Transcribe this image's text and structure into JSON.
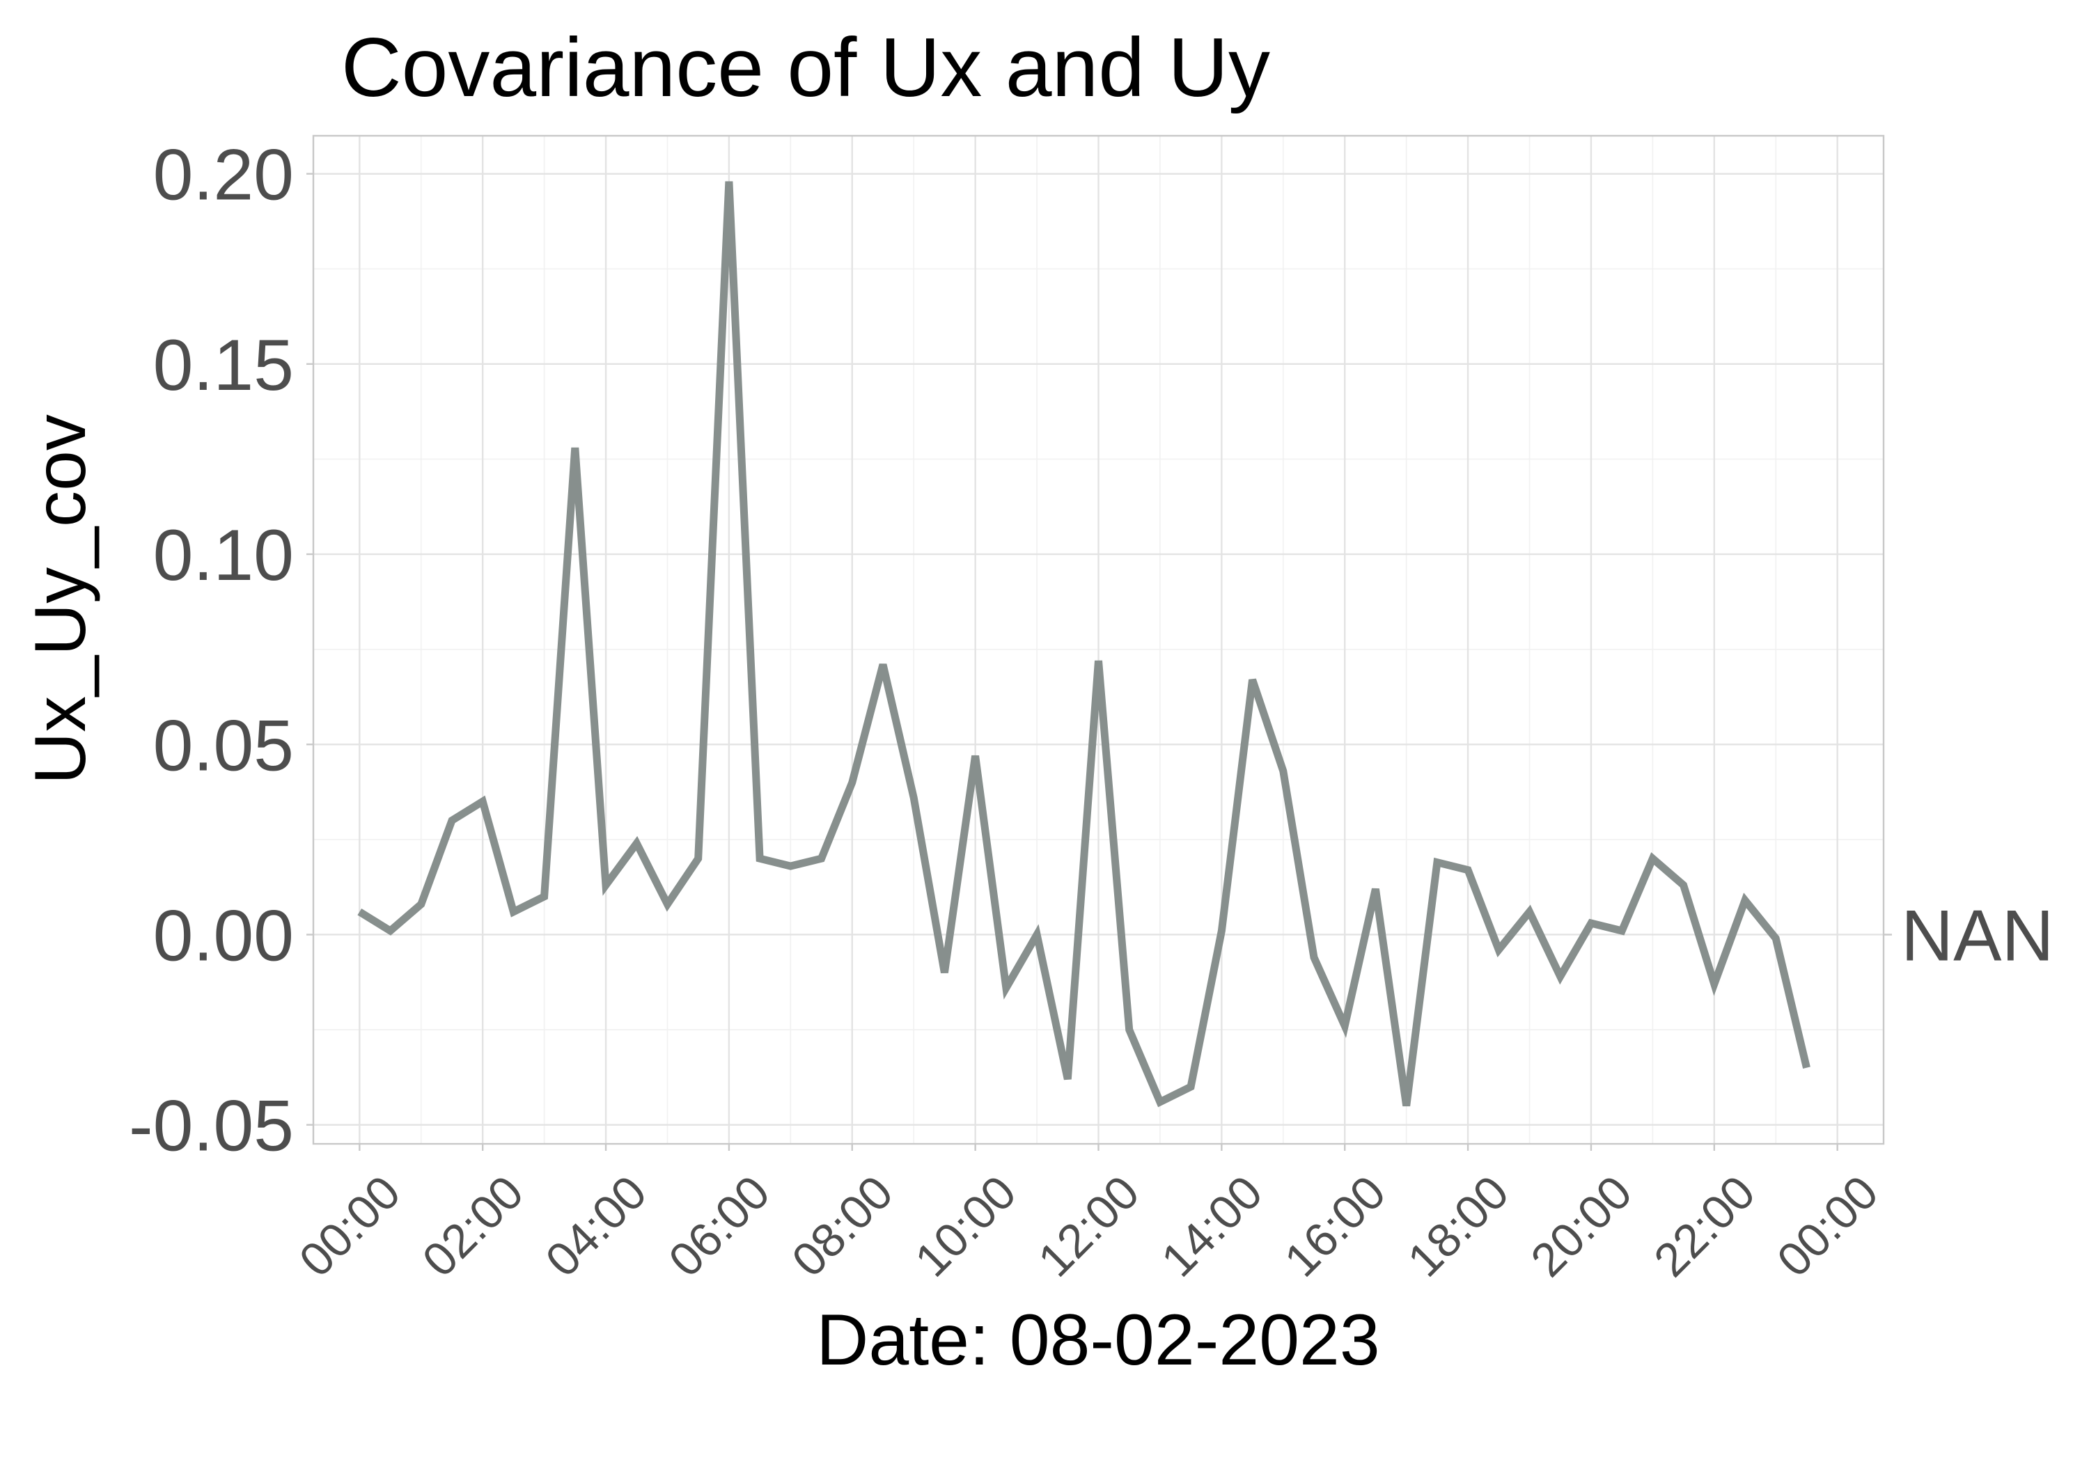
{
  "chart_data": {
    "type": "line",
    "title": "Covariance of Ux and Uy",
    "xlabel": "Date: 08-02-2023",
    "ylabel": "Ux_Uy_cov",
    "ylim": [
      -0.055,
      0.21
    ],
    "xlim_hours": [
      -0.75,
      24.75
    ],
    "y_ticks": [
      -0.05,
      0.0,
      0.05,
      0.1,
      0.15,
      0.2
    ],
    "y_tick_labels": [
      "-0.05",
      "0.00",
      "0.05",
      "0.10",
      "0.15",
      "0.20"
    ],
    "x_ticks_hours": [
      0,
      2,
      4,
      6,
      8,
      10,
      12,
      14,
      16,
      18,
      20,
      22,
      24
    ],
    "x_tick_labels": [
      "00:00",
      "02:00",
      "04:00",
      "06:00",
      "08:00",
      "10:00",
      "12:00",
      "14:00",
      "16:00",
      "18:00",
      "20:00",
      "22:00",
      "00:00"
    ],
    "grid": true,
    "legend": "none",
    "line_color": "#878f8d",
    "annotation": {
      "text": "NAN",
      "y": 0.0
    },
    "series": [
      {
        "name": "Ux_Uy_cov",
        "x": [
          0,
          0.5,
          1,
          1.5,
          2,
          2.5,
          3,
          3.5,
          4,
          4.5,
          5,
          5.5,
          6,
          6.5,
          7,
          7.5,
          8,
          8.5,
          9,
          9.5,
          10,
          10.5,
          11,
          11.5,
          12,
          12.5,
          13,
          13.5,
          14,
          14.5,
          15,
          15.5,
          16,
          16.5,
          17,
          17.5,
          18,
          18.5,
          19,
          19.5,
          20,
          20.5,
          21,
          21.5,
          22,
          22.5,
          23,
          23.5
        ],
        "values": [
          0.006,
          0.001,
          0.008,
          0.03,
          0.035,
          0.006,
          0.01,
          0.128,
          0.013,
          0.024,
          0.008,
          0.02,
          0.198,
          0.02,
          0.018,
          0.02,
          0.04,
          0.071,
          0.036,
          -0.01,
          0.047,
          -0.014,
          0.0,
          -0.038,
          0.072,
          -0.025,
          -0.044,
          -0.04,
          0.001,
          0.067,
          0.043,
          -0.006,
          -0.024,
          0.012,
          -0.045,
          0.019,
          0.017,
          -0.004,
          0.006,
          -0.011,
          0.003,
          0.001,
          0.02,
          0.013,
          -0.013,
          0.009,
          -0.001,
          -0.035
        ]
      }
    ]
  }
}
